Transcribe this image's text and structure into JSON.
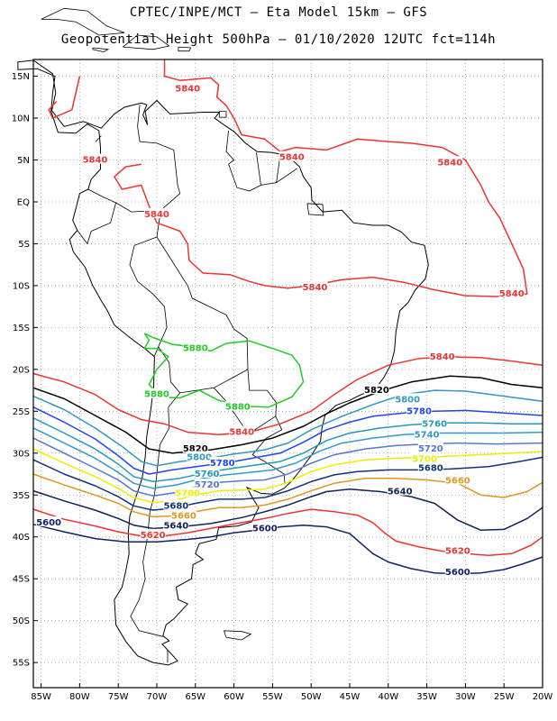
{
  "title_line1": "CPTEC/INPE/MCT –  Eta Model 15km – GFS",
  "title_line2": "Geopotential Height 500hPa – 01/10/2020 12UTC fct=114h",
  "map": {
    "lon_range": [
      -86,
      -20
    ],
    "lat_range": [
      -58,
      17
    ],
    "lat_ticks": [
      {
        "value": 15,
        "label": "15N"
      },
      {
        "value": 10,
        "label": "10N"
      },
      {
        "value": 5,
        "label": "5N"
      },
      {
        "value": 0,
        "label": "EQ"
      },
      {
        "value": -5,
        "label": "5S"
      },
      {
        "value": -10,
        "label": "10S"
      },
      {
        "value": -15,
        "label": "15S"
      },
      {
        "value": -20,
        "label": "20S"
      },
      {
        "value": -25,
        "label": "25S"
      },
      {
        "value": -30,
        "label": "30S"
      },
      {
        "value": -35,
        "label": "35S"
      },
      {
        "value": -40,
        "label": "40S"
      },
      {
        "value": -45,
        "label": "45S"
      },
      {
        "value": -50,
        "label": "50S"
      },
      {
        "value": -55,
        "label": "55S"
      }
    ],
    "lon_ticks": [
      {
        "value": -85,
        "label": "85W"
      },
      {
        "value": -80,
        "label": "80W"
      },
      {
        "value": -75,
        "label": "75W"
      },
      {
        "value": -70,
        "label": "70W"
      },
      {
        "value": -65,
        "label": "65W"
      },
      {
        "value": -60,
        "label": "60W"
      },
      {
        "value": -55,
        "label": "55W"
      },
      {
        "value": -50,
        "label": "50W"
      },
      {
        "value": -45,
        "label": "45W"
      },
      {
        "value": -40,
        "label": "40W"
      },
      {
        "value": -35,
        "label": "35W"
      },
      {
        "value": -30,
        "label": "30W"
      },
      {
        "value": -25,
        "label": "25W"
      },
      {
        "value": -20,
        "label": "20W"
      }
    ],
    "contour_colors": {
      "5880": "#22cc22",
      "5840": "#ee3333",
      "5820": "#000000",
      "5800": "#3399bb",
      "5780": "#2244ee",
      "5760": "#2299bb",
      "5740": "#3399cc",
      "5720": "#5577cc",
      "5700": "#eeee00",
      "5680": "#113377",
      "5660": "#dd9922",
      "5640": "#112255",
      "5620": "#ee3333",
      "5600": "#112266"
    },
    "contour_labels": [
      {
        "text": "5840",
        "lon": -66,
        "lat": 13.5,
        "color": "#ee3333"
      },
      {
        "text": "5840",
        "lon": -52.5,
        "lat": 5.3,
        "color": "#ee3333"
      },
      {
        "text": "5840",
        "lon": -32,
        "lat": 4.7,
        "color": "#ee3333"
      },
      {
        "text": "5840",
        "lon": -78,
        "lat": 5,
        "color": "#ee3333"
      },
      {
        "text": "5840",
        "lon": -70,
        "lat": -1.5,
        "color": "#ee3333"
      },
      {
        "text": "5840",
        "lon": -49.5,
        "lat": -10.2,
        "color": "#ee3333"
      },
      {
        "text": "5840",
        "lon": -24,
        "lat": -11,
        "color": "#ee3333"
      },
      {
        "text": "5840",
        "lon": -33,
        "lat": -18.5,
        "color": "#ee3333"
      },
      {
        "text": "5840",
        "lon": -59,
        "lat": -27.5,
        "color": "#ee3333"
      },
      {
        "text": "5880",
        "lon": -65,
        "lat": -17.5,
        "color": "#22cc22"
      },
      {
        "text": "5880",
        "lon": -70,
        "lat": -23,
        "color": "#22cc22"
      },
      {
        "text": "5880",
        "lon": -59.5,
        "lat": -24.5,
        "color": "#22cc22"
      },
      {
        "text": "5820",
        "lon": -41.5,
        "lat": -22.5,
        "color": "#000000"
      },
      {
        "text": "5820",
        "lon": -65,
        "lat": -29.5,
        "color": "#000000"
      },
      {
        "text": "5800",
        "lon": -37.5,
        "lat": -23.6,
        "color": "#3399bb"
      },
      {
        "text": "5800",
        "lon": -64.5,
        "lat": -30.5,
        "color": "#3399bb"
      },
      {
        "text": "5780",
        "lon": -36,
        "lat": -25,
        "color": "#2244ee"
      },
      {
        "text": "5780",
        "lon": -61.5,
        "lat": -31.2,
        "color": "#2244ee"
      },
      {
        "text": "5760",
        "lon": -34,
        "lat": -26.5,
        "color": "#2299bb"
      },
      {
        "text": "5760",
        "lon": -63.5,
        "lat": -32.5,
        "color": "#2299bb"
      },
      {
        "text": "5740",
        "lon": -35,
        "lat": -27.8,
        "color": "#3399cc"
      },
      {
        "text": "5720",
        "lon": -34.5,
        "lat": -29.5,
        "color": "#5577cc"
      },
      {
        "text": "5720",
        "lon": -63.5,
        "lat": -33.8,
        "color": "#5577cc"
      },
      {
        "text": "5700",
        "lon": -35.3,
        "lat": -30.7,
        "color": "#eeee00"
      },
      {
        "text": "5700",
        "lon": -66,
        "lat": -34.8,
        "color": "#eeee00"
      },
      {
        "text": "5680",
        "lon": -34.5,
        "lat": -31.8,
        "color": "#113377"
      },
      {
        "text": "5680",
        "lon": -67.5,
        "lat": -36.3,
        "color": "#113377"
      },
      {
        "text": "5660",
        "lon": -31,
        "lat": -33.3,
        "color": "#dd9922"
      },
      {
        "text": "5660",
        "lon": -66.5,
        "lat": -37.5,
        "color": "#dd9922"
      },
      {
        "text": "5640",
        "lon": -38.5,
        "lat": -34.6,
        "color": "#112255"
      },
      {
        "text": "5640",
        "lon": -67.5,
        "lat": -38.7,
        "color": "#112255"
      },
      {
        "text": "5620",
        "lon": -70.5,
        "lat": -39.8,
        "color": "#ee3333"
      },
      {
        "text": "5620",
        "lon": -31,
        "lat": -41.7,
        "color": "#ee3333"
      },
      {
        "text": "5600",
        "lon": -84,
        "lat": -38.3,
        "color": "#112266"
      },
      {
        "text": "5600",
        "lon": -56,
        "lat": -39,
        "color": "#112266"
      },
      {
        "text": "5600",
        "lon": -31,
        "lat": -44.2,
        "color": "#112266"
      }
    ]
  }
}
